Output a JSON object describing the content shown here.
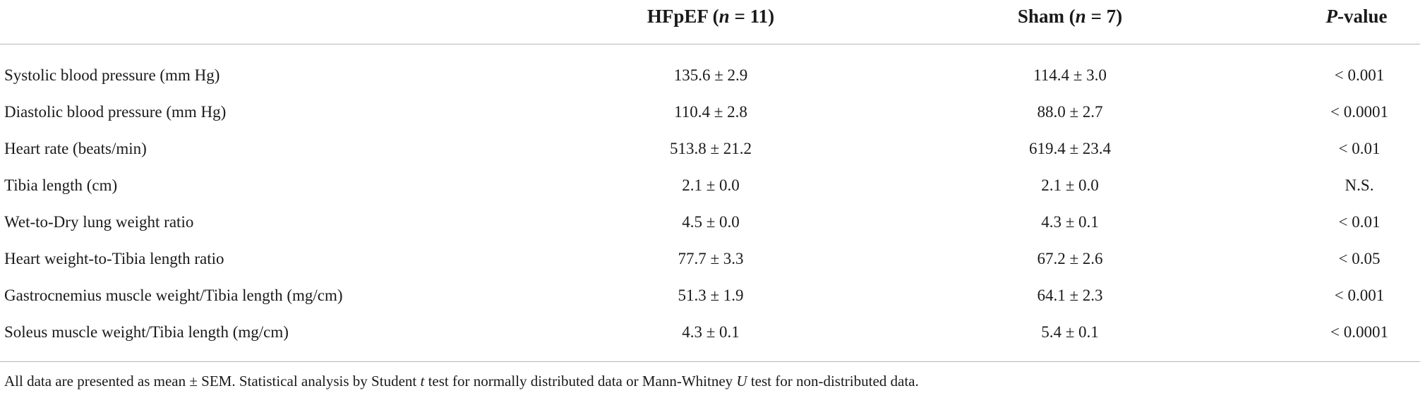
{
  "table": {
    "header": [
      [
        "HFpEF (",
        "n",
        " = 11)"
      ],
      [
        "Sham (",
        "n",
        " = 7)"
      ],
      [
        "P",
        "-value"
      ]
    ],
    "rows": [
      [
        "Systolic blood pressure (mm Hg)",
        "135.6 ± 2.9",
        "114.4 ± 3.0",
        "< 0.001"
      ],
      [
        "Diastolic blood pressure (mm Hg)",
        "110.4 ± 2.8",
        "88.0 ± 2.7",
        "< 0.0001"
      ],
      [
        "Heart rate (beats/min)",
        "513.8 ± 21.2",
        "619.4 ± 23.4",
        "< 0.01"
      ],
      [
        "Tibia length (cm)",
        "2.1 ± 0.0",
        "2.1 ± 0.0",
        "N.S."
      ],
      [
        "Wet-to-Dry lung weight ratio",
        "4.5 ± 0.0",
        "4.3 ± 0.1",
        "< 0.01"
      ],
      [
        "Heart weight-to-Tibia length ratio",
        "77.7 ± 3.3",
        "67.2 ± 2.6",
        "< 0.05"
      ],
      [
        "Gastrocnemius muscle weight/Tibia length (mg/cm)",
        "51.3 ± 1.9",
        "64.1 ± 2.3",
        "< 0.001"
      ],
      [
        "Soleus muscle weight/Tibia length (mg/cm)",
        "4.3 ± 0.1",
        "5.4 ± 0.1",
        "< 0.0001"
      ]
    ]
  },
  "footnote": [
    "All data are presented as mean ± SEM. Statistical analysis by Student ",
    "t",
    " test for normally distributed data or Mann-Whitney ",
    "U",
    " test for non-distributed data."
  ]
}
